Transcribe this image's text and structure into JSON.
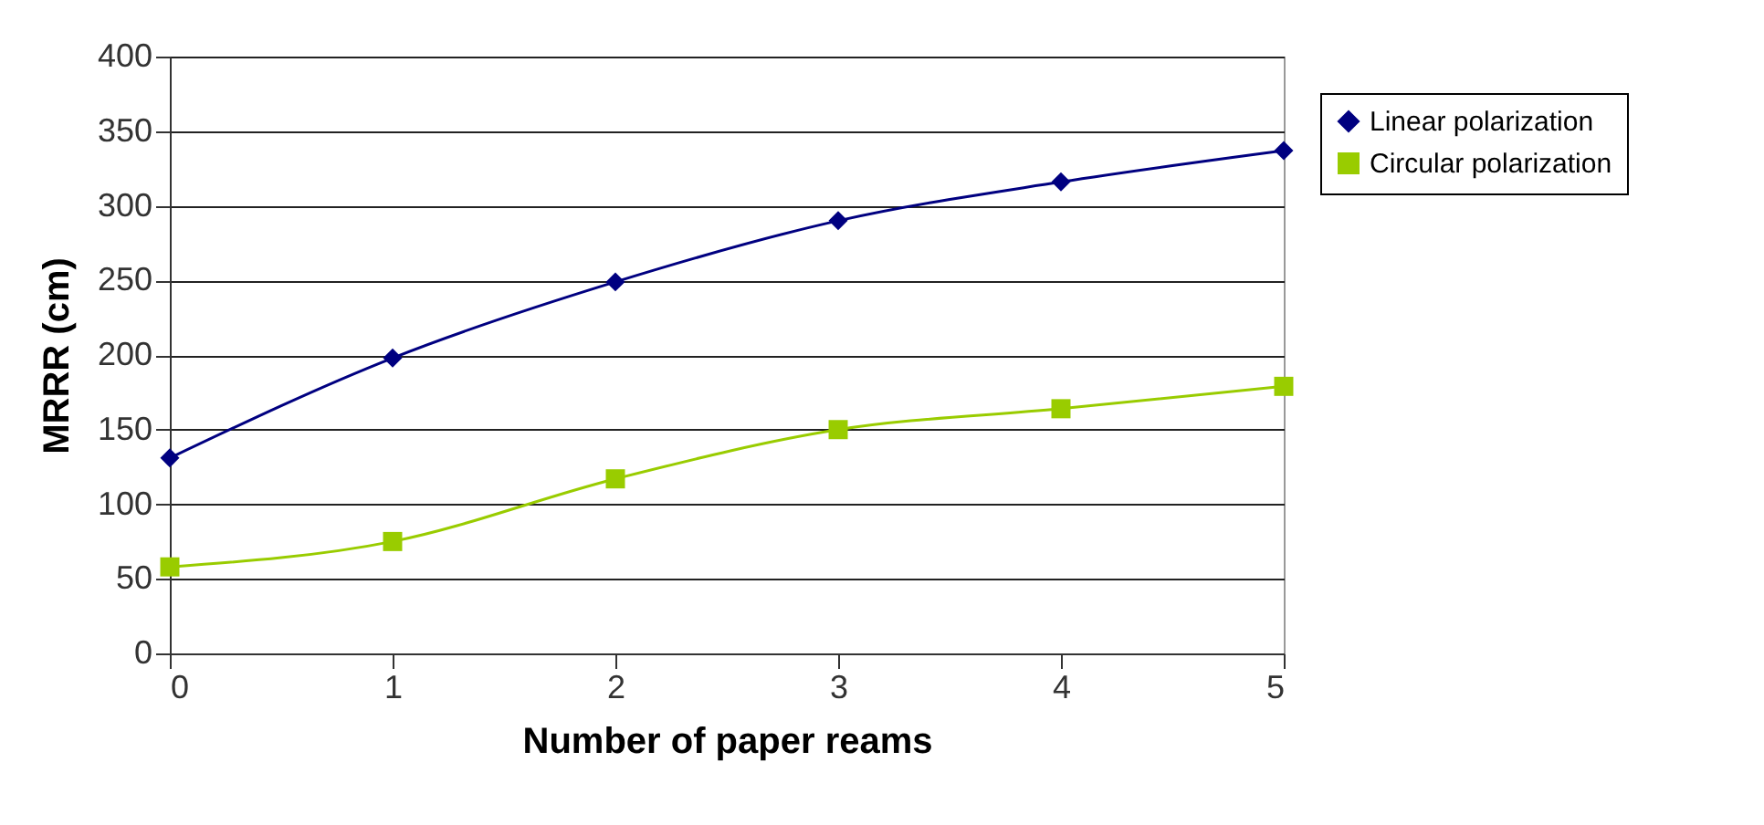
{
  "chart_data": {
    "type": "line",
    "xlabel": "Number of paper reams",
    "ylabel": "MRRR (cm)",
    "x": [
      0,
      1,
      2,
      3,
      4,
      5
    ],
    "series": [
      {
        "name": "Linear polarization",
        "color": "#000080",
        "marker": "diamond",
        "values": [
          131,
          198,
          249,
          290,
          316,
          337
        ]
      },
      {
        "name": "Circular polarization",
        "color": "#99cc00",
        "marker": "square",
        "values": [
          58,
          75,
          117,
          150,
          164,
          179
        ]
      }
    ],
    "xlim": [
      0,
      5
    ],
    "xticks": [
      0,
      1,
      2,
      3,
      4,
      5
    ],
    "ylim": [
      0,
      400
    ],
    "yticks": [
      0,
      50,
      100,
      150,
      200,
      250,
      300,
      350,
      400
    ],
    "grid": "y",
    "legend": "top right",
    "line_style": "solid"
  }
}
